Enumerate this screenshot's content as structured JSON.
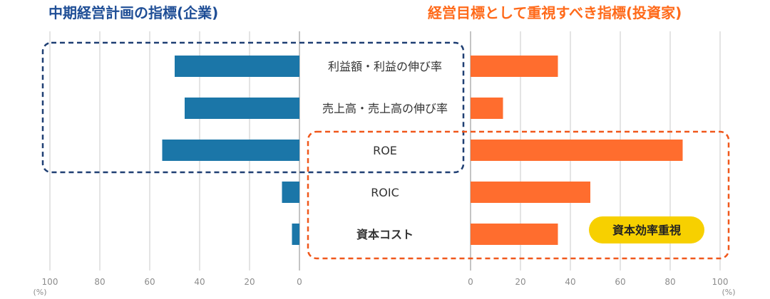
{
  "titles": {
    "left": "中期経営計画の指標(企業)",
    "right": "経営目標として重視すべき指標(投資家)"
  },
  "colors": {
    "company": "#1b76a8",
    "investor": "#ff6d2e",
    "company_box": "#1f3f73",
    "investor_box": "#f0581c",
    "badge_bg": "#f7d000",
    "grid": "#c8c8c8",
    "tick_text": "#8c8c8c",
    "label_text": "#333333"
  },
  "badge": {
    "text": "資本効率重視"
  },
  "chart_data": {
    "type": "bar",
    "orientation": "horizontal-butterfly",
    "categories": [
      "利益額・利益の伸び率",
      "売上高・売上高の伸び率",
      "ROE",
      "ROIC",
      "資本コスト"
    ],
    "category_bold": [
      false,
      false,
      false,
      false,
      true
    ],
    "series": [
      {
        "name": "中期経営計画の指標(企業)",
        "values": [
          50,
          46,
          55,
          7,
          3
        ]
      },
      {
        "name": "経営目標として重視すべき指標(投資家)",
        "values": [
          35,
          13,
          85,
          48,
          35
        ]
      }
    ],
    "xlim": [
      0,
      100
    ],
    "ticks": [
      0,
      20,
      40,
      60,
      80,
      100
    ],
    "unit_label": "(%)",
    "grid": true
  }
}
